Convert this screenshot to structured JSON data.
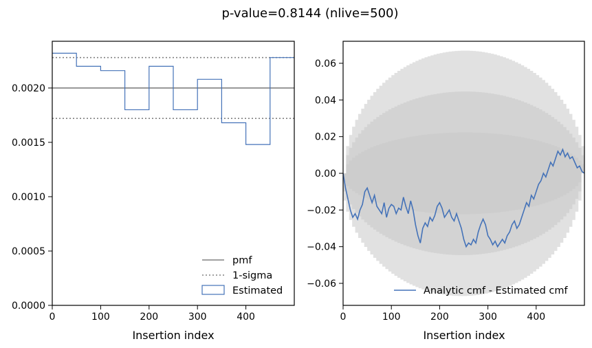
{
  "title": "p-value=0.8144 (nlive=500)",
  "colors": {
    "pmf": "#808080",
    "sigma": "#808080",
    "estimated": "#4472b8",
    "band": "#c8c8c8"
  },
  "chart_data": [
    {
      "type": "line",
      "xlabel": "Insertion index",
      "ylabel": "",
      "xlim": [
        0,
        500
      ],
      "ylim": [
        0,
        0.00243
      ],
      "xticks": [
        "0",
        "100",
        "200",
        "300",
        "400"
      ],
      "yticks": [
        "0.0000",
        "0.0005",
        "0.0010",
        "0.0015",
        "0.0020"
      ],
      "grid": false,
      "legend_position": "bottom-right",
      "legend": [
        "pmf",
        "1-sigma",
        "Estimated"
      ],
      "pmf": 0.002,
      "sigma_band": [
        0.00172,
        0.00228
      ],
      "series": [
        {
          "name": "Estimated",
          "step_edges": [
            0,
            50,
            100,
            150,
            200,
            250,
            300,
            350,
            400,
            450,
            500
          ],
          "values": [
            0.00232,
            0.0022,
            0.00216,
            0.0018,
            0.0022,
            0.0018,
            0.00208,
            0.00168,
            0.00148,
            0.00228
          ]
        }
      ]
    },
    {
      "type": "line",
      "xlabel": "Insertion index",
      "ylabel": "",
      "xlim": [
        0,
        500
      ],
      "ylim": [
        -0.072,
        0.072
      ],
      "xticks": [
        "0",
        "100",
        "200",
        "300",
        "400"
      ],
      "yticks": [
        "−0.06",
        "−0.04",
        "−0.02",
        "0.00",
        "0.02",
        "0.04",
        "0.06"
      ],
      "grid": false,
      "legend_position": "bottom-right",
      "legend": [
        "Analytic cmf - Estimated cmf"
      ],
      "bands": [
        {
          "sigma": 1,
          "half_width_at_center": 0.0223
        },
        {
          "sigma": 2,
          "half_width_at_center": 0.0446
        },
        {
          "sigma": 3,
          "half_width_at_center": 0.0669
        }
      ],
      "series": [
        {
          "name": "Analytic cmf - Estimated cmf",
          "x": [
            0,
            5,
            10,
            15,
            20,
            25,
            30,
            35,
            40,
            45,
            50,
            55,
            60,
            65,
            70,
            75,
            80,
            85,
            90,
            95,
            100,
            105,
            110,
            115,
            120,
            125,
            130,
            135,
            140,
            145,
            150,
            155,
            160,
            165,
            170,
            175,
            180,
            185,
            190,
            195,
            200,
            205,
            210,
            215,
            220,
            225,
            230,
            235,
            240,
            245,
            250,
            255,
            260,
            265,
            270,
            275,
            280,
            285,
            290,
            295,
            300,
            305,
            310,
            315,
            320,
            325,
            330,
            335,
            340,
            345,
            350,
            355,
            360,
            365,
            370,
            375,
            380,
            385,
            390,
            395,
            400,
            405,
            410,
            415,
            420,
            425,
            430,
            435,
            440,
            445,
            450,
            455,
            460,
            465,
            470,
            475,
            480,
            485,
            490,
            495,
            500
          ],
          "y": [
            0.0,
            -0.008,
            -0.014,
            -0.02,
            -0.024,
            -0.022,
            -0.025,
            -0.02,
            -0.017,
            -0.01,
            -0.008,
            -0.012,
            -0.016,
            -0.012,
            -0.018,
            -0.02,
            -0.022,
            -0.016,
            -0.024,
            -0.019,
            -0.017,
            -0.018,
            -0.022,
            -0.019,
            -0.02,
            -0.013,
            -0.018,
            -0.022,
            -0.015,
            -0.02,
            -0.028,
            -0.034,
            -0.038,
            -0.03,
            -0.027,
            -0.029,
            -0.024,
            -0.026,
            -0.023,
            -0.018,
            -0.016,
            -0.019,
            -0.024,
            -0.022,
            -0.02,
            -0.024,
            -0.026,
            -0.022,
            -0.026,
            -0.03,
            -0.036,
            -0.04,
            -0.038,
            -0.039,
            -0.036,
            -0.038,
            -0.032,
            -0.028,
            -0.025,
            -0.028,
            -0.034,
            -0.036,
            -0.039,
            -0.037,
            -0.04,
            -0.038,
            -0.036,
            -0.038,
            -0.034,
            -0.032,
            -0.028,
            -0.026,
            -0.03,
            -0.028,
            -0.024,
            -0.02,
            -0.016,
            -0.018,
            -0.012,
            -0.014,
            -0.01,
            -0.006,
            -0.004,
            0.0,
            -0.002,
            0.002,
            0.006,
            0.004,
            0.008,
            0.012,
            0.01,
            0.013,
            0.009,
            0.011,
            0.008,
            0.009,
            0.006,
            0.003,
            0.004,
            0.001,
            0.0
          ]
        }
      ]
    }
  ]
}
